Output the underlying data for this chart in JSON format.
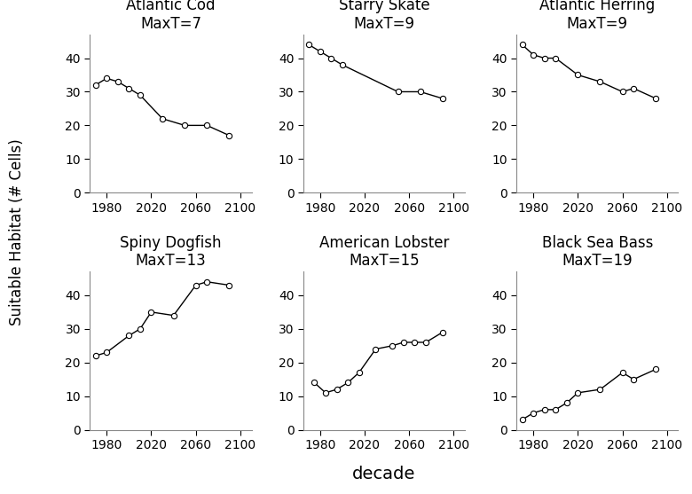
{
  "species": [
    {
      "title": "Atlantic Cod",
      "subtitle": "MaxT=7",
      "x": [
        1970,
        1980,
        1990,
        2000,
        2010,
        2030,
        2050,
        2070,
        2090
      ],
      "y": [
        32,
        34,
        33,
        31,
        29,
        22,
        20,
        20,
        17
      ]
    },
    {
      "title": "Starry Skate",
      "subtitle": "MaxT=9",
      "x": [
        1970,
        1980,
        1990,
        2000,
        2050,
        2070,
        2090
      ],
      "y": [
        44,
        42,
        40,
        38,
        30,
        30,
        28
      ]
    },
    {
      "title": "Atlantic Herring",
      "subtitle": "MaxT=9",
      "x": [
        1970,
        1980,
        1990,
        2000,
        2020,
        2040,
        2060,
        2070,
        2090
      ],
      "y": [
        44,
        41,
        40,
        40,
        35,
        33,
        30,
        31,
        28
      ]
    },
    {
      "title": "Spiny Dogfish",
      "subtitle": "MaxT=13",
      "x": [
        1970,
        1980,
        2000,
        2010,
        2020,
        2040,
        2060,
        2070,
        2090
      ],
      "y": [
        22,
        23,
        28,
        30,
        35,
        34,
        43,
        44,
        43
      ]
    },
    {
      "title": "American Lobster",
      "subtitle": "MaxT=15",
      "x": [
        1975,
        1985,
        1995,
        2005,
        2015,
        2030,
        2045,
        2055,
        2065,
        2075,
        2090
      ],
      "y": [
        14,
        11,
        12,
        14,
        17,
        24,
        25,
        26,
        26,
        26,
        29
      ]
    },
    {
      "title": "Black Sea Bass",
      "subtitle": "MaxT=19",
      "x": [
        1970,
        1980,
        1990,
        2000,
        2010,
        2020,
        2040,
        2060,
        2070,
        2090
      ],
      "y": [
        3,
        5,
        6,
        6,
        8,
        11,
        12,
        17,
        15,
        18
      ]
    }
  ],
  "ylim": [
    0,
    47
  ],
  "yticks": [
    0,
    10,
    20,
    30,
    40
  ],
  "xticks": [
    1980,
    2020,
    2060,
    2100
  ],
  "xlim": [
    1965,
    2110
  ],
  "ylabel": "Suitable Habitat (# Cells)",
  "xlabel": "decade",
  "bg_color": "#ffffff",
  "plot_bg": "#ffffff",
  "line_color": "#000000",
  "marker": "o",
  "marker_facecolor": "white",
  "marker_edgecolor": "#000000",
  "marker_size": 4.5,
  "linewidth": 1.0,
  "title_fontsize": 12,
  "subtitle_fontsize": 12,
  "label_fontsize": 12,
  "tick_fontsize": 10,
  "spine_color": "#888888"
}
